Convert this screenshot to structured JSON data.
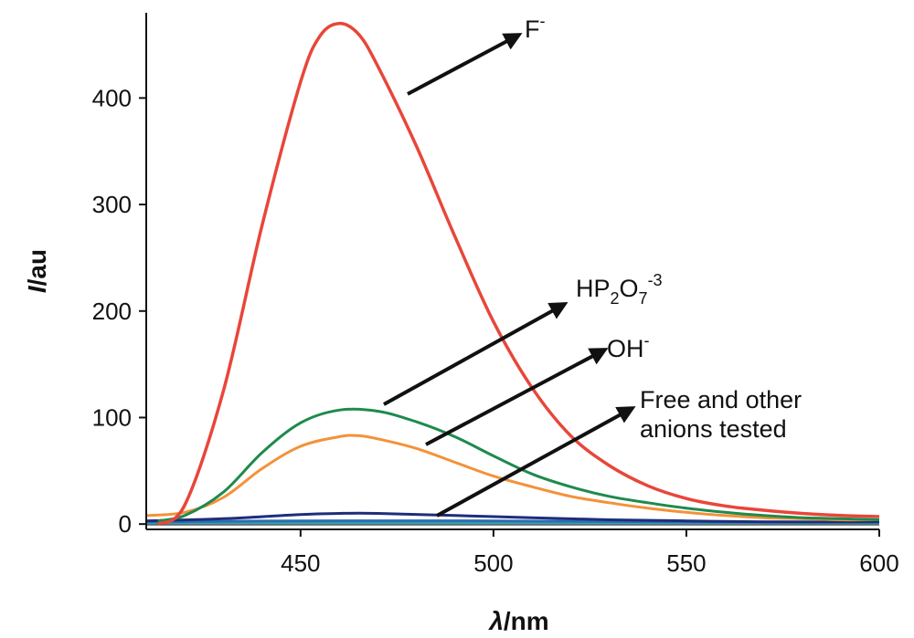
{
  "chart_data": {
    "type": "line",
    "title": "",
    "xlabel_symbol": "λ",
    "xlabel_unit": "/nm",
    "ylabel_symbol": "I",
    "ylabel_unit": "/au",
    "xlim": [
      410,
      600
    ],
    "ylim": [
      -5,
      480
    ],
    "xticks": [
      450,
      500,
      550,
      600
    ],
    "yticks": [
      0,
      100,
      200,
      300,
      400
    ],
    "grid": false,
    "legend": "none",
    "series": [
      {
        "id": "fluoride",
        "color": "#e8463a",
        "x": [
          413,
          420,
          430,
          440,
          450,
          455,
          460,
          465,
          470,
          480,
          490,
          500,
          510,
          520,
          530,
          540,
          550,
          560,
          570,
          580,
          590,
          600
        ],
        "y": [
          0,
          18,
          125,
          280,
          415,
          458,
          470,
          460,
          430,
          355,
          270,
          190,
          128,
          83,
          55,
          36,
          24,
          17,
          13,
          10,
          8,
          7
        ]
      },
      {
        "id": "pyrophosphate",
        "color": "#1e8a4c",
        "x": [
          413,
          420,
          430,
          440,
          450,
          460,
          470,
          480,
          490,
          500,
          510,
          520,
          530,
          540,
          550,
          560,
          570,
          580,
          590,
          600
        ],
        "y": [
          3,
          8,
          30,
          67,
          95,
          107,
          106,
          96,
          82,
          64,
          47,
          35,
          26,
          20,
          15,
          11,
          8,
          6,
          5,
          4
        ]
      },
      {
        "id": "hydroxide",
        "color": "#f39239",
        "x": [
          410,
          420,
          430,
          440,
          450,
          460,
          465,
          470,
          480,
          490,
          500,
          510,
          520,
          530,
          540,
          550,
          560,
          570,
          580,
          590,
          600
        ],
        "y": [
          8,
          11,
          25,
          52,
          73,
          82,
          83,
          80,
          71,
          58,
          45,
          35,
          26,
          20,
          15,
          11,
          8,
          6,
          5,
          4,
          4
        ]
      },
      {
        "id": "free-navy",
        "color": "#1f2d7a",
        "x": [
          410,
          430,
          450,
          460,
          470,
          490,
          510,
          530,
          550,
          570,
          600
        ],
        "y": [
          3,
          5,
          9,
          10,
          10,
          8,
          6,
          4,
          3,
          2,
          2
        ]
      },
      {
        "id": "free-blue",
        "color": "#2b6cb5",
        "x": [
          410,
          450,
          500,
          550,
          600
        ],
        "y": [
          2,
          3,
          3,
          2,
          2
        ]
      },
      {
        "id": "free-teal",
        "color": "#3aa0a8",
        "x": [
          410,
          450,
          500,
          550,
          600
        ],
        "y": [
          1,
          1,
          1,
          1,
          1
        ]
      },
      {
        "id": "free-grey",
        "color": "#555555",
        "x": [
          410,
          600
        ],
        "y": [
          0,
          0
        ]
      }
    ],
    "annotations": [
      {
        "id": "f-minus",
        "base": "F",
        "sup": "-",
        "sub": "",
        "sub_sup": ""
      },
      {
        "id": "pyrophosphate",
        "base": "HP",
        "sub": "2",
        "mid": "O",
        "sub2": "7",
        "sup": "-3"
      },
      {
        "id": "oh-minus",
        "base": "OH",
        "sup": "-",
        "sub": ""
      },
      {
        "id": "free-line1",
        "text": "Free and other"
      },
      {
        "id": "free-line2",
        "text": "anions tested"
      }
    ]
  }
}
